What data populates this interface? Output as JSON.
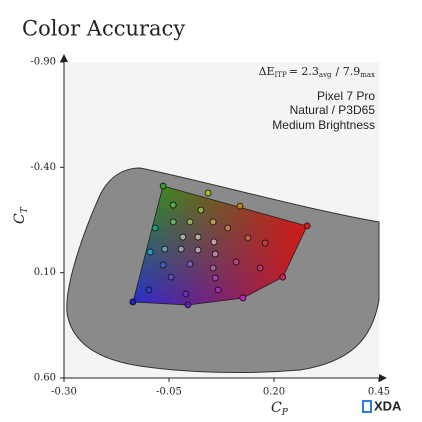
{
  "chart_data": {
    "type": "scatter",
    "title": "Color Accuracy",
    "xlabel": {
      "text": "C",
      "sub": "P"
    },
    "ylabel": {
      "text": "C",
      "sub": "T"
    },
    "annotation": {
      "delta": "ΔE",
      "delta_sub": "ITP",
      "avg": "= 2.3",
      "avg_sub": "avg",
      "max": "/ 7.9",
      "max_sub": "max",
      "lines": [
        "Pixel 7 Pro",
        "Natural / P3D65",
        "Medium Brightness"
      ]
    },
    "brand": "XDA",
    "xlim": [
      -0.3,
      0.45
    ],
    "xticks": [
      {
        "value": -0.3,
        "label": "-0.30"
      },
      {
        "value": -0.05,
        "label": "-0.05"
      },
      {
        "value": 0.2,
        "label": "0.20"
      },
      {
        "value": 0.45,
        "label": "0.45"
      }
    ],
    "ylim": [
      -0.9,
      0.6
    ],
    "y_inverted": true,
    "yticks": [
      {
        "value": -0.9,
        "label": "-0.90"
      },
      {
        "value": -0.4,
        "label": "-0.40"
      },
      {
        "value": 0.1,
        "label": "0.10"
      },
      {
        "value": 0.6,
        "label": "0.60"
      }
    ],
    "grid": false,
    "x": [
      -0.064,
      -0.136,
      0.279,
      -0.005,
      0.126,
      0.221,
      0.043,
      0.119,
      -0.04,
      0.026,
      -0.083,
      -0.04,
      0.0,
      0.055,
      0.09,
      -0.017,
      0.019,
      0.057,
      0.138,
      0.179,
      -0.095,
      -0.06,
      -0.021,
      0.019,
      0.06,
      -0.064,
      0.0,
      0.055,
      0.11,
      0.167,
      -0.098,
      -0.045,
      0.06,
      -0.01,
      0.067
    ],
    "values": [
      -0.311,
      0.239,
      -0.122,
      0.253,
      0.22,
      0.121,
      -0.278,
      -0.216,
      -0.221,
      -0.197,
      -0.112,
      -0.141,
      -0.141,
      -0.141,
      -0.112,
      -0.069,
      -0.069,
      -0.046,
      -0.065,
      -0.041,
      0.002,
      -0.012,
      -0.012,
      -0.008,
      0.011,
      0.064,
      0.059,
      0.078,
      0.049,
      0.078,
      0.182,
      0.121,
      0.125,
      0.201,
      0.182
    ],
    "colors": [
      "#2e9e2e",
      "#2020c0",
      "#d02020",
      "#6020b0",
      "#c020c0",
      "#d02060",
      "#a0c020",
      "#c08020",
      "#50b040",
      "#90b040",
      "#20a080",
      "#60b060",
      "#90b060",
      "#b0a050",
      "#b08050",
      "#a0b0a0",
      "#b0b0a0",
      "#c0a0a0",
      "#c06040",
      "#c04040",
      "#20a0c0",
      "#60a0b0",
      "#90a0b0",
      "#b0a0b0",
      "#c080a0",
      "#4060c0",
      "#7060b0",
      "#a060a0",
      "#c04080",
      "#c03060",
      "#3040c0",
      "#5050c0",
      "#a040b0",
      "#6030c0",
      "#a030b0"
    ]
  }
}
